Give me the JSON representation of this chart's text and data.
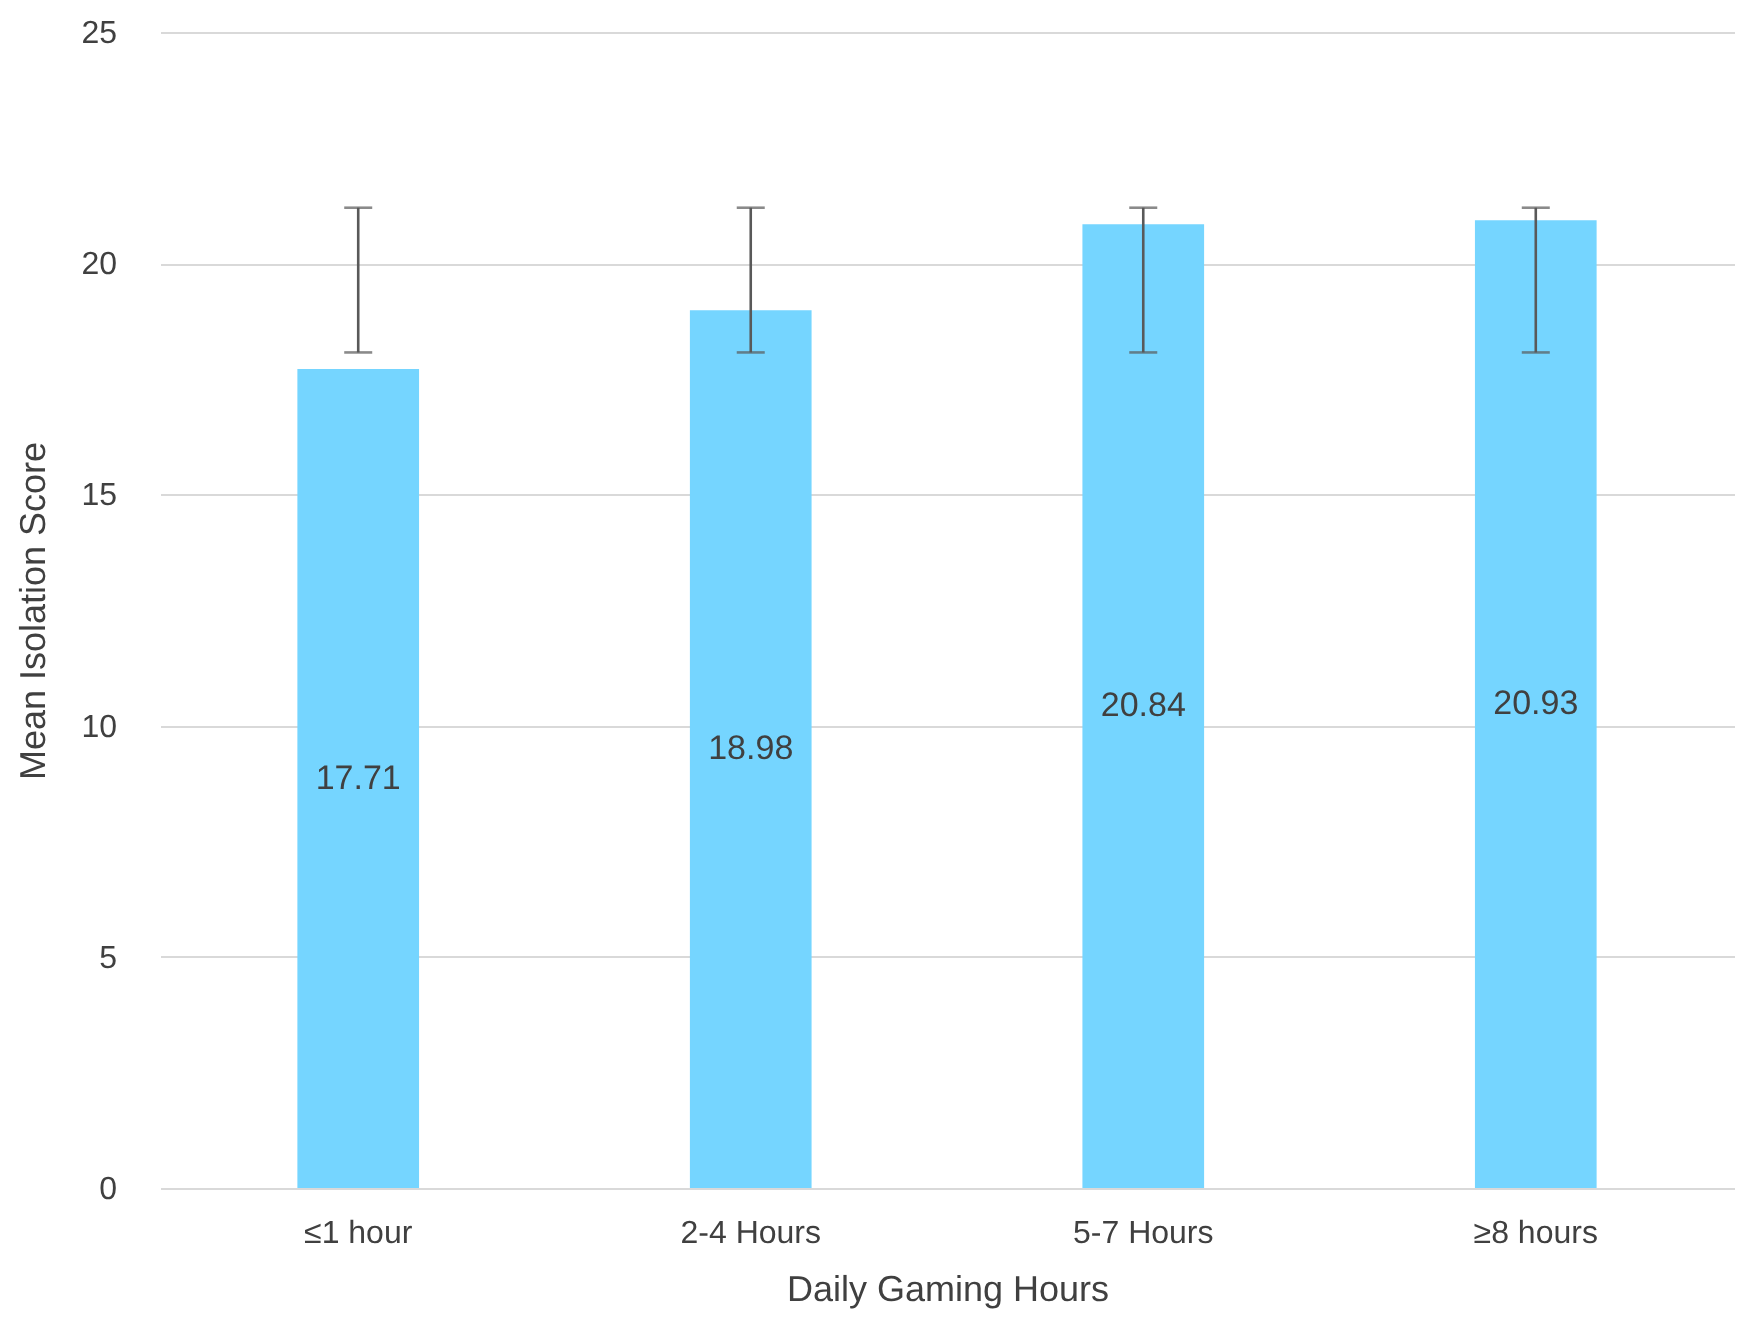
{
  "chart_data": {
    "type": "bar",
    "xlabel": "Daily Gaming Hours",
    "ylabel": "Mean Isolation Score",
    "categories": [
      "≤1 hour",
      "2-4 Hours",
      "5-7 Hours",
      "≥8 hours"
    ],
    "values": [
      17.71,
      18.98,
      20.84,
      20.93
    ],
    "errors": [
      [
        18.07,
        21.2
      ],
      [
        18.07,
        21.2
      ],
      [
        18.07,
        21.2
      ],
      [
        18.07,
        21.2
      ]
    ],
    "color": "#75d5ff",
    "data_labels": true,
    "ylim": [
      0,
      25
    ],
    "yticks": [
      0,
      5,
      10,
      15,
      20,
      25
    ],
    "grid": "y"
  }
}
